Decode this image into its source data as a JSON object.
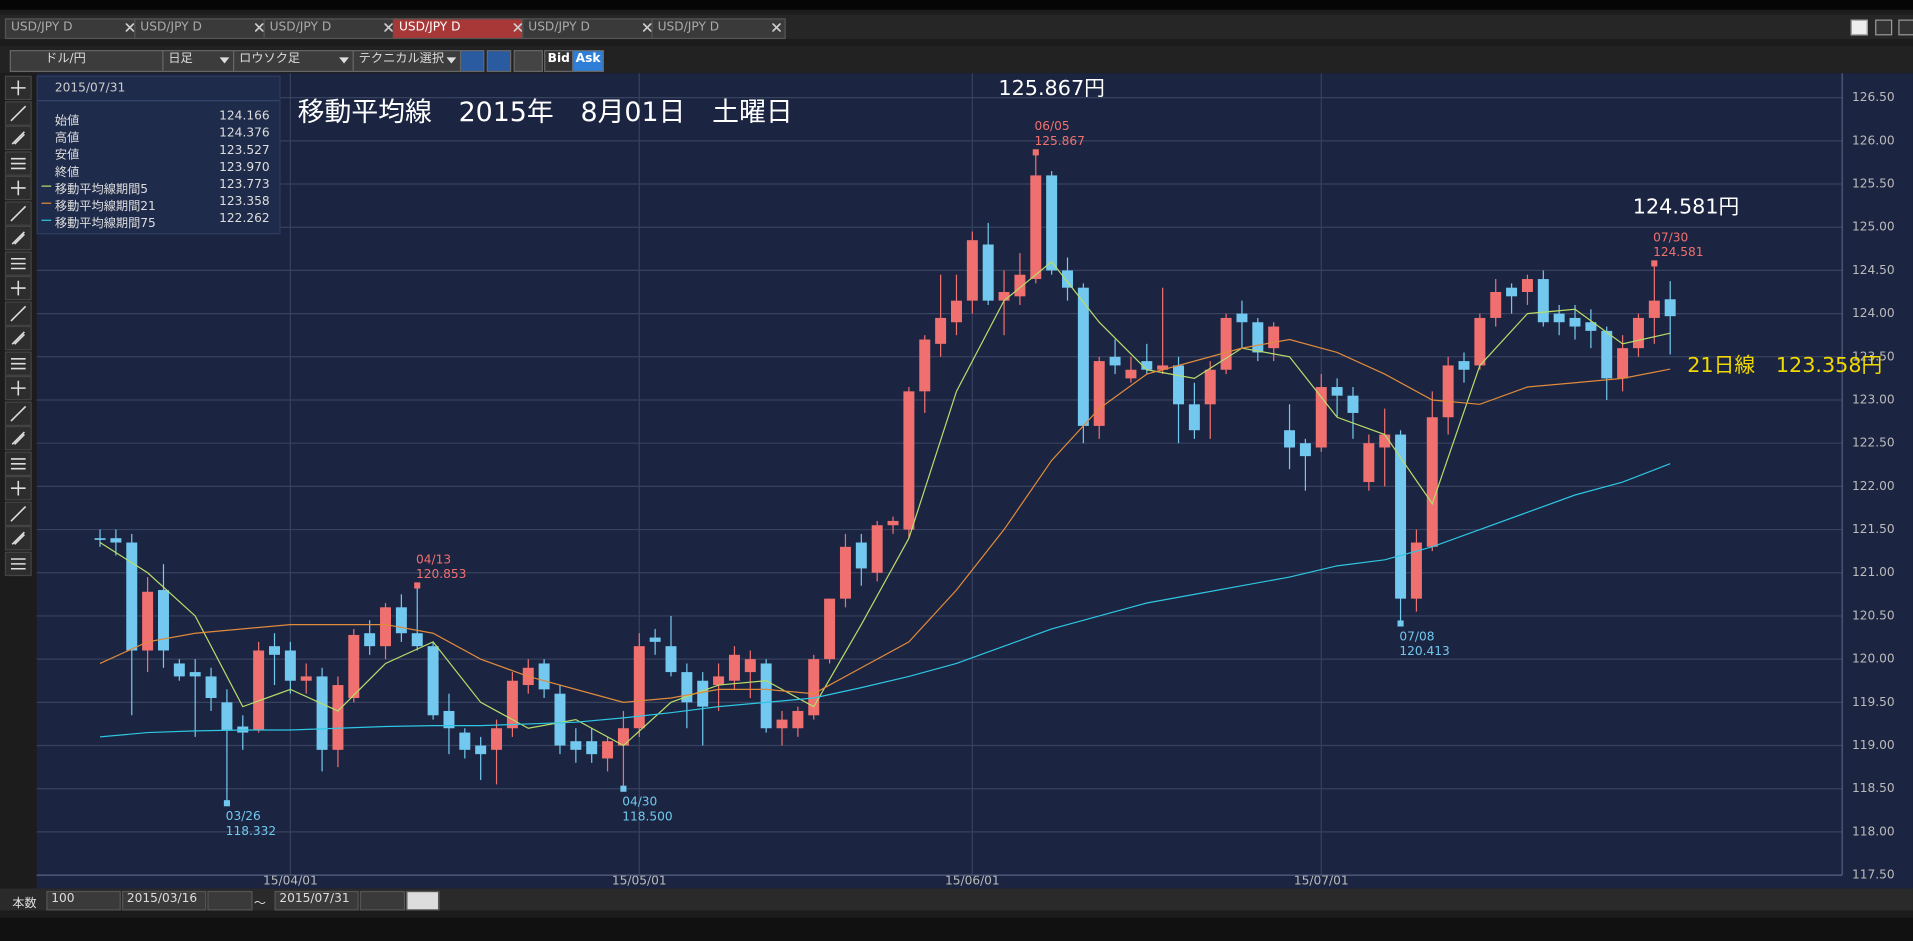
{
  "ui": {
    "tabs": [
      "USD/JPY D",
      "USD/JPY D",
      "USD/JPY D",
      "USD/JPY D",
      "USD/JPY D",
      "USD/JPY D"
    ],
    "active_tab": 3,
    "toolbar": {
      "pair": "ドル/円",
      "period": "日足",
      "chart_style": "ロウソク足",
      "technical": "テクニカル選択",
      "bid": "Bid",
      "ask": "Ask"
    },
    "footer": {
      "count_label": "本数",
      "count": "100",
      "from": "2015/03/16",
      "tilde": "～",
      "to": "2015/07/31"
    }
  },
  "info": {
    "date": "2015/07/31",
    "rows": [
      {
        "label": "始値",
        "value": "124.166"
      },
      {
        "label": "高値",
        "value": "124.376"
      },
      {
        "label": "安値",
        "value": "123.527"
      },
      {
        "label": "終値",
        "value": "123.970"
      }
    ],
    "ma_values": [
      "123.773",
      "123.358",
      "122.262"
    ]
  },
  "chart_data": {
    "type": "candlestick",
    "title": "移動平均線　2015年　8月01日　土曜日",
    "up_color": "#f07070",
    "down_color": "#72c8ee",
    "grid": true,
    "categories": [
      "15/03/16",
      "15/03/17",
      "15/03/18",
      "15/03/19",
      "15/03/20",
      "15/03/23",
      "15/03/24",
      "15/03/25",
      "15/03/26",
      "15/03/27",
      "15/03/30",
      "15/03/31",
      "15/04/01",
      "15/04/02",
      "15/04/03",
      "15/04/06",
      "15/04/07",
      "15/04/08",
      "15/04/09",
      "15/04/10",
      "15/04/13",
      "15/04/14",
      "15/04/15",
      "15/04/16",
      "15/04/17",
      "15/04/20",
      "15/04/21",
      "15/04/22",
      "15/04/23",
      "15/04/24",
      "15/04/27",
      "15/04/28",
      "15/04/29",
      "15/04/30",
      "15/05/01",
      "15/05/04",
      "15/05/05",
      "15/05/06",
      "15/05/07",
      "15/05/08",
      "15/05/11",
      "15/05/12",
      "15/05/13",
      "15/05/14",
      "15/05/15",
      "15/05/18",
      "15/05/19",
      "15/05/20",
      "15/05/21",
      "15/05/22",
      "15/05/25",
      "15/05/26",
      "15/05/27",
      "15/05/28",
      "15/05/29",
      "15/06/01",
      "15/06/02",
      "15/06/03",
      "15/06/04",
      "15/06/05",
      "15/06/08",
      "15/06/09",
      "15/06/10",
      "15/06/11",
      "15/06/12",
      "15/06/15",
      "15/06/16",
      "15/06/17",
      "15/06/18",
      "15/06/19",
      "15/06/22",
      "15/06/23",
      "15/06/24",
      "15/06/25",
      "15/06/26",
      "15/06/29",
      "15/06/30",
      "15/07/01",
      "15/07/02",
      "15/07/03",
      "15/07/06",
      "15/07/07",
      "15/07/08",
      "15/07/09",
      "15/07/10",
      "15/07/13",
      "15/07/14",
      "15/07/15",
      "15/07/16",
      "15/07/17",
      "15/07/20",
      "15/07/21",
      "15/07/22",
      "15/07/23",
      "15/07/24",
      "15/07/27",
      "15/07/28",
      "15/07/29",
      "15/07/30",
      "15/07/31"
    ],
    "ohlc": [
      [
        121.4,
        121.5,
        121.3,
        121.38
      ],
      [
        121.4,
        121.5,
        121.2,
        121.35
      ],
      [
        121.35,
        121.45,
        119.35,
        120.1
      ],
      [
        120.1,
        120.95,
        119.85,
        120.78
      ],
      [
        120.8,
        121.1,
        119.9,
        120.1
      ],
      [
        119.95,
        120.0,
        119.75,
        119.8
      ],
      [
        119.85,
        120.0,
        119.1,
        119.8
      ],
      [
        119.8,
        119.9,
        119.4,
        119.55
      ],
      [
        119.5,
        119.65,
        118.332,
        119.18
      ],
      [
        119.22,
        119.35,
        118.95,
        119.15
      ],
      [
        119.18,
        120.2,
        119.15,
        120.1
      ],
      [
        120.15,
        120.3,
        119.7,
        120.05
      ],
      [
        120.1,
        120.2,
        119.6,
        119.75
      ],
      [
        119.75,
        119.95,
        119.6,
        119.8
      ],
      [
        119.8,
        119.9,
        118.7,
        118.95
      ],
      [
        118.95,
        119.8,
        118.75,
        119.7
      ],
      [
        119.55,
        120.35,
        119.5,
        120.28
      ],
      [
        120.3,
        120.45,
        120.05,
        120.15
      ],
      [
        120.15,
        120.65,
        120.0,
        120.6
      ],
      [
        120.6,
        120.75,
        120.2,
        120.3
      ],
      [
        120.3,
        120.853,
        120.1,
        120.15
      ],
      [
        120.15,
        120.2,
        119.3,
        119.35
      ],
      [
        119.4,
        119.6,
        118.9,
        119.2
      ],
      [
        119.15,
        119.2,
        118.85,
        118.95
      ],
      [
        119.0,
        119.1,
        118.6,
        118.9
      ],
      [
        118.95,
        119.3,
        118.55,
        119.2
      ],
      [
        119.2,
        119.85,
        119.1,
        119.75
      ],
      [
        119.7,
        120.0,
        119.6,
        119.9
      ],
      [
        119.95,
        120.0,
        119.55,
        119.65
      ],
      [
        119.6,
        119.7,
        118.9,
        119.0
      ],
      [
        119.05,
        119.2,
        118.8,
        118.95
      ],
      [
        119.05,
        119.2,
        118.8,
        118.9
      ],
      [
        118.85,
        119.1,
        118.7,
        119.05
      ],
      [
        119.0,
        119.4,
        118.5,
        119.2
      ],
      [
        119.2,
        120.3,
        119.1,
        120.15
      ],
      [
        120.25,
        120.35,
        120.05,
        120.2
      ],
      [
        120.15,
        120.5,
        119.8,
        119.85
      ],
      [
        119.85,
        119.95,
        119.2,
        119.5
      ],
      [
        119.75,
        119.85,
        119.0,
        119.45
      ],
      [
        119.7,
        119.95,
        119.4,
        119.8
      ],
      [
        119.75,
        120.15,
        119.65,
        120.05
      ],
      [
        119.85,
        120.1,
        119.55,
        120.0
      ],
      [
        119.95,
        120.0,
        119.15,
        119.2
      ],
      [
        119.2,
        119.4,
        119.0,
        119.3
      ],
      [
        119.2,
        119.45,
        119.1,
        119.4
      ],
      [
        119.35,
        120.05,
        119.3,
        120.0
      ],
      [
        120.0,
        120.7,
        119.95,
        120.7
      ],
      [
        120.7,
        121.45,
        120.6,
        121.3
      ],
      [
        121.35,
        121.45,
        120.85,
        121.05
      ],
      [
        121.0,
        121.6,
        120.9,
        121.55
      ],
      [
        121.55,
        121.65,
        121.45,
        121.6
      ],
      [
        121.5,
        123.15,
        121.4,
        123.1
      ],
      [
        123.1,
        123.75,
        122.85,
        123.7
      ],
      [
        123.65,
        124.45,
        123.5,
        123.95
      ],
      [
        123.9,
        124.45,
        123.75,
        124.15
      ],
      [
        124.15,
        124.95,
        124.0,
        124.85
      ],
      [
        124.8,
        125.05,
        124.1,
        124.15
      ],
      [
        124.15,
        124.5,
        123.75,
        124.25
      ],
      [
        124.2,
        124.7,
        124.1,
        124.45
      ],
      [
        124.4,
        125.867,
        124.35,
        125.6
      ],
      [
        125.6,
        125.65,
        124.45,
        124.5
      ],
      [
        124.5,
        124.65,
        124.15,
        124.3
      ],
      [
        124.3,
        124.35,
        122.5,
        122.7
      ],
      [
        122.7,
        123.5,
        122.55,
        123.45
      ],
      [
        123.5,
        123.7,
        123.3,
        123.4
      ],
      [
        123.25,
        123.5,
        123.2,
        123.35
      ],
      [
        123.45,
        123.65,
        123.3,
        123.35
      ],
      [
        123.35,
        124.3,
        123.3,
        123.4
      ],
      [
        123.4,
        123.5,
        122.5,
        122.95
      ],
      [
        122.95,
        123.2,
        122.55,
        122.65
      ],
      [
        122.95,
        123.45,
        122.55,
        123.35
      ],
      [
        123.35,
        124.0,
        123.3,
        123.95
      ],
      [
        124.0,
        124.15,
        123.6,
        123.9
      ],
      [
        123.9,
        123.95,
        123.45,
        123.55
      ],
      [
        123.6,
        123.9,
        123.45,
        123.85
      ],
      [
        122.65,
        122.95,
        122.2,
        122.45
      ],
      [
        122.5,
        122.55,
        121.95,
        122.35
      ],
      [
        122.45,
        123.3,
        122.4,
        123.15
      ],
      [
        123.15,
        123.25,
        122.8,
        123.05
      ],
      [
        123.05,
        123.15,
        122.55,
        122.85
      ],
      [
        122.05,
        122.6,
        121.95,
        122.5
      ],
      [
        122.45,
        122.9,
        122.0,
        122.6
      ],
      [
        122.6,
        122.65,
        120.413,
        120.7
      ],
      [
        120.7,
        121.5,
        120.55,
        121.35
      ],
      [
        121.3,
        123.1,
        121.25,
        122.8
      ],
      [
        122.8,
        123.5,
        122.6,
        123.4
      ],
      [
        123.45,
        123.55,
        123.2,
        123.35
      ],
      [
        123.4,
        124.0,
        123.35,
        123.95
      ],
      [
        123.95,
        124.4,
        123.85,
        124.25
      ],
      [
        124.3,
        124.35,
        124.0,
        124.2
      ],
      [
        124.25,
        124.45,
        124.1,
        124.4
      ],
      [
        124.4,
        124.5,
        123.85,
        123.9
      ],
      [
        124.0,
        124.1,
        123.75,
        123.9
      ],
      [
        123.95,
        124.1,
        123.7,
        123.85
      ],
      [
        123.9,
        124.05,
        123.6,
        123.8
      ],
      [
        123.8,
        123.85,
        123.0,
        123.25
      ],
      [
        123.25,
        123.75,
        123.1,
        123.6
      ],
      [
        123.6,
        124.0,
        123.5,
        123.95
      ],
      [
        123.95,
        124.581,
        123.65,
        124.15
      ],
      [
        124.166,
        124.376,
        123.527,
        123.97
      ]
    ],
    "series": [
      {
        "name": "移動平均線期間5",
        "color": "#b8dc6a",
        "x": [
          "15/03/16",
          "15/03/19",
          "15/03/24",
          "15/03/27",
          "15/04/01",
          "15/04/06",
          "15/04/09",
          "15/04/14",
          "15/04/17",
          "15/04/22",
          "15/04/27",
          "15/04/30",
          "15/05/05",
          "15/05/08",
          "15/05/13",
          "15/05/18",
          "15/05/21",
          "15/05/26",
          "15/05/29",
          "15/06/03",
          "15/06/08",
          "15/06/11",
          "15/06/16",
          "15/06/19",
          "15/06/24",
          "15/06/29",
          "15/07/02",
          "15/07/07",
          "15/07/10",
          "15/07/15",
          "15/07/20",
          "15/07/23",
          "15/07/28",
          "15/07/31"
        ],
        "values": [
          121.35,
          121.0,
          120.5,
          119.45,
          119.65,
          119.4,
          119.95,
          120.2,
          119.5,
          119.2,
          119.3,
          119.0,
          119.5,
          119.7,
          119.75,
          119.45,
          120.4,
          121.4,
          123.1,
          124.15,
          124.6,
          123.9,
          123.35,
          123.25,
          123.6,
          123.5,
          122.8,
          122.6,
          121.8,
          123.4,
          124.0,
          124.05,
          123.65,
          123.773
        ]
      },
      {
        "name": "移動平均線期間21",
        "color": "#e08a3c",
        "x": [
          "15/03/16",
          "15/03/19",
          "15/03/24",
          "15/03/27",
          "15/04/01",
          "15/04/06",
          "15/04/09",
          "15/04/14",
          "15/04/17",
          "15/04/22",
          "15/04/27",
          "15/04/30",
          "15/05/05",
          "15/05/08",
          "15/05/13",
          "15/05/18",
          "15/05/21",
          "15/05/26",
          "15/05/29",
          "15/06/03",
          "15/06/08",
          "15/06/11",
          "15/06/16",
          "15/06/19",
          "15/06/24",
          "15/06/29",
          "15/07/02",
          "15/07/07",
          "15/07/10",
          "15/07/15",
          "15/07/20",
          "15/07/23",
          "15/07/28",
          "15/07/31"
        ],
        "values": [
          119.95,
          120.2,
          120.3,
          120.35,
          120.4,
          120.4,
          120.4,
          120.3,
          120.0,
          119.8,
          119.65,
          119.5,
          119.55,
          119.65,
          119.65,
          119.6,
          119.9,
          120.2,
          120.8,
          121.5,
          122.3,
          122.9,
          123.3,
          123.45,
          123.6,
          123.7,
          123.55,
          123.3,
          123.0,
          122.95,
          123.15,
          123.2,
          123.25,
          123.358
        ]
      },
      {
        "name": "移動平均線期間75",
        "color": "#2ec6e2",
        "x": [
          "15/03/16",
          "15/03/19",
          "15/03/24",
          "15/03/27",
          "15/04/01",
          "15/04/06",
          "15/04/09",
          "15/04/14",
          "15/04/17",
          "15/04/22",
          "15/04/27",
          "15/04/30",
          "15/05/05",
          "15/05/08",
          "15/05/13",
          "15/05/18",
          "15/05/21",
          "15/05/26",
          "15/05/29",
          "15/06/03",
          "15/06/08",
          "15/06/11",
          "15/06/16",
          "15/06/19",
          "15/06/24",
          "15/06/29",
          "15/07/02",
          "15/07/07",
          "15/07/10",
          "15/07/15",
          "15/07/20",
          "15/07/23",
          "15/07/28",
          "15/07/31"
        ],
        "values": [
          119.1,
          119.15,
          119.17,
          119.18,
          119.18,
          119.2,
          119.22,
          119.23,
          119.23,
          119.25,
          119.27,
          119.32,
          119.38,
          119.45,
          119.5,
          119.55,
          119.67,
          119.8,
          119.95,
          120.15,
          120.35,
          120.5,
          120.65,
          120.75,
          120.85,
          120.95,
          121.08,
          121.15,
          121.3,
          121.5,
          121.7,
          121.9,
          122.05,
          122.262
        ]
      }
    ],
    "ylim": [
      117.5,
      126.5
    ],
    "yticks": [
      {
        "value": 117.5,
        "label": "117.50"
      },
      {
        "value": 118,
        "label": "118.00"
      },
      {
        "value": 118.5,
        "label": "118.50"
      },
      {
        "value": 119,
        "label": "119.00"
      },
      {
        "value": 119.5,
        "label": "119.50"
      },
      {
        "value": 120,
        "label": "120.00"
      },
      {
        "value": 120.5,
        "label": "120.50"
      },
      {
        "value": 121,
        "label": "121.00"
      },
      {
        "value": 121.5,
        "label": "121.50"
      },
      {
        "value": 122,
        "label": "122.00"
      },
      {
        "value": 122.5,
        "label": "122.50"
      },
      {
        "value": 123,
        "label": "123.00"
      },
      {
        "value": 123.5,
        "label": "123.50"
      },
      {
        "value": 124,
        "label": "124.00"
      },
      {
        "value": 124.5,
        "label": "124.50"
      },
      {
        "value": 125,
        "label": "125.00"
      },
      {
        "value": 125.5,
        "label": "125.50"
      },
      {
        "value": 126,
        "label": "126.00"
      },
      {
        "value": 126.5,
        "label": "126.50"
      }
    ],
    "xticks": [
      "15/04/01",
      "15/05/01",
      "15/06/01",
      "15/07/01"
    ],
    "annotations": [
      {
        "date": "03/26",
        "price": "118.332"
      },
      {
        "date": "04/13",
        "price": "120.853"
      },
      {
        "date": "04/30",
        "price": "118.500"
      },
      {
        "date": "06/05",
        "price": "125.867"
      },
      {
        "date": "07/08",
        "price": "120.413"
      },
      {
        "date": "07/30",
        "price": "124.581"
      }
    ],
    "callouts": [
      {
        "text": "125.867円",
        "color": "#ffffff"
      },
      {
        "text": "124.581円",
        "color": "#ffffff"
      },
      {
        "text": "21日線　123.358円",
        "color": "#f0d800"
      }
    ]
  }
}
